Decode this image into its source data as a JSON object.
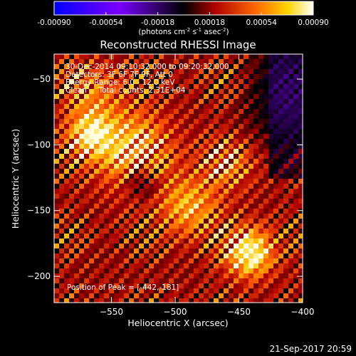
{
  "colorbar": {
    "ticks": [
      "-0.00090",
      "-0.00054",
      "-0.00018",
      "0.00018",
      "0.00054",
      "0.00090"
    ],
    "unit_main": "(photons cm",
    "unit_sup1": "-2",
    "unit_mid": " s",
    "unit_sup2": "-1",
    "unit_end": " asec",
    "unit_sup3": "-2",
    "unit_close": ")",
    "range": [
      -0.0009,
      0.0009
    ]
  },
  "chart_data": {
    "type": "heatmap",
    "title": "Reconstructed RHESSI Image",
    "xlabel": "Heliocentric X (arcsec)",
    "ylabel": "Heliocentric Y (arcsec)",
    "xlim": [
      -595,
      -400
    ],
    "ylim": [
      -220,
      -31
    ],
    "x_ticks": [
      -550,
      -500,
      -450,
      -400
    ],
    "y_ticks": [
      -50,
      -100,
      -150,
      -200
    ],
    "annotations": [
      "30-Dec-2014 09:10:32.000 to 09:20:32.000",
      "Detectors: 3F 6F 7F 9F, Att 0",
      "Energy Range: 6.0 - 12.0 keV",
      "Clean     Total counts: 2.31E+04"
    ],
    "peak_label": "Position of Peak = [-442,-181]",
    "peak_position": [
      -442,
      -181
    ]
  },
  "footer": {
    "timestamp": "21-Sep-2017 20:59"
  }
}
